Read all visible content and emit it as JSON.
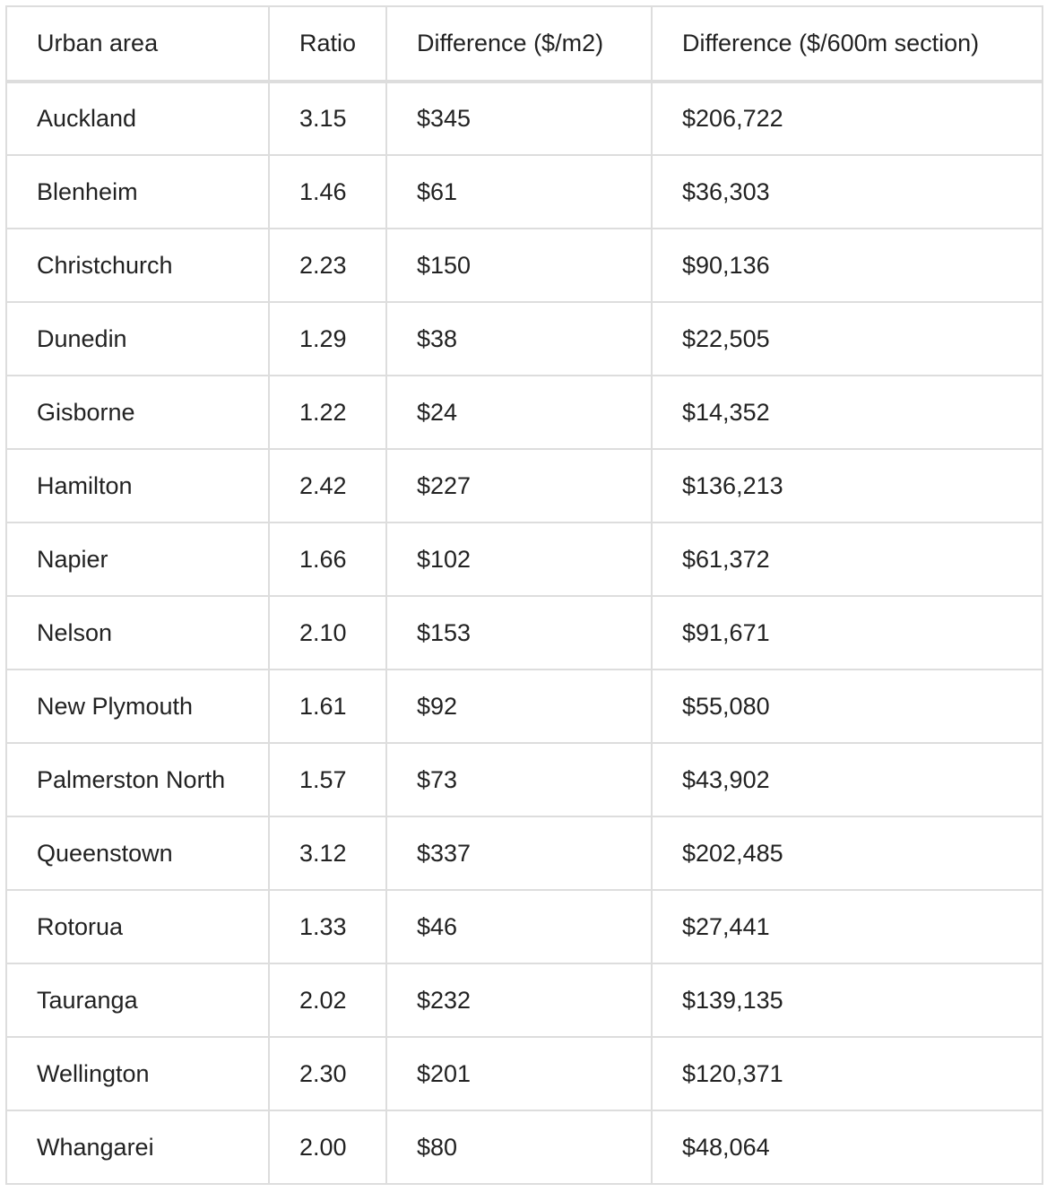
{
  "table": {
    "headers": [
      "Urban area",
      "Ratio",
      "Difference ($/m2)",
      "Difference ($/600m section)"
    ],
    "rows": [
      [
        "Auckland",
        "3.15",
        "$345",
        "$206,722"
      ],
      [
        "Blenheim",
        "1.46",
        "$61",
        "$36,303"
      ],
      [
        "Christchurch",
        "2.23",
        "$150",
        "$90,136"
      ],
      [
        "Dunedin",
        "1.29",
        "$38",
        "$22,505"
      ],
      [
        "Gisborne",
        "1.22",
        "$24",
        "$14,352"
      ],
      [
        "Hamilton",
        "2.42",
        "$227",
        "$136,213"
      ],
      [
        "Napier",
        "1.66",
        "$102",
        "$61,372"
      ],
      [
        "Nelson",
        "2.10",
        "$153",
        "$91,671"
      ],
      [
        "New Plymouth",
        "1.61",
        "$92",
        "$55,080"
      ],
      [
        "Palmerston North",
        "1.57",
        "$73",
        "$43,902"
      ],
      [
        "Queenstown",
        "3.12",
        "$337",
        "$202,485"
      ],
      [
        "Rotorua",
        "1.33",
        "$46",
        "$27,441"
      ],
      [
        "Tauranga",
        "2.02",
        "$232",
        "$139,135"
      ],
      [
        "Wellington",
        "2.30",
        "$201",
        "$120,371"
      ],
      [
        "Whangarei",
        "2.00",
        "$80",
        "$48,064"
      ]
    ]
  }
}
